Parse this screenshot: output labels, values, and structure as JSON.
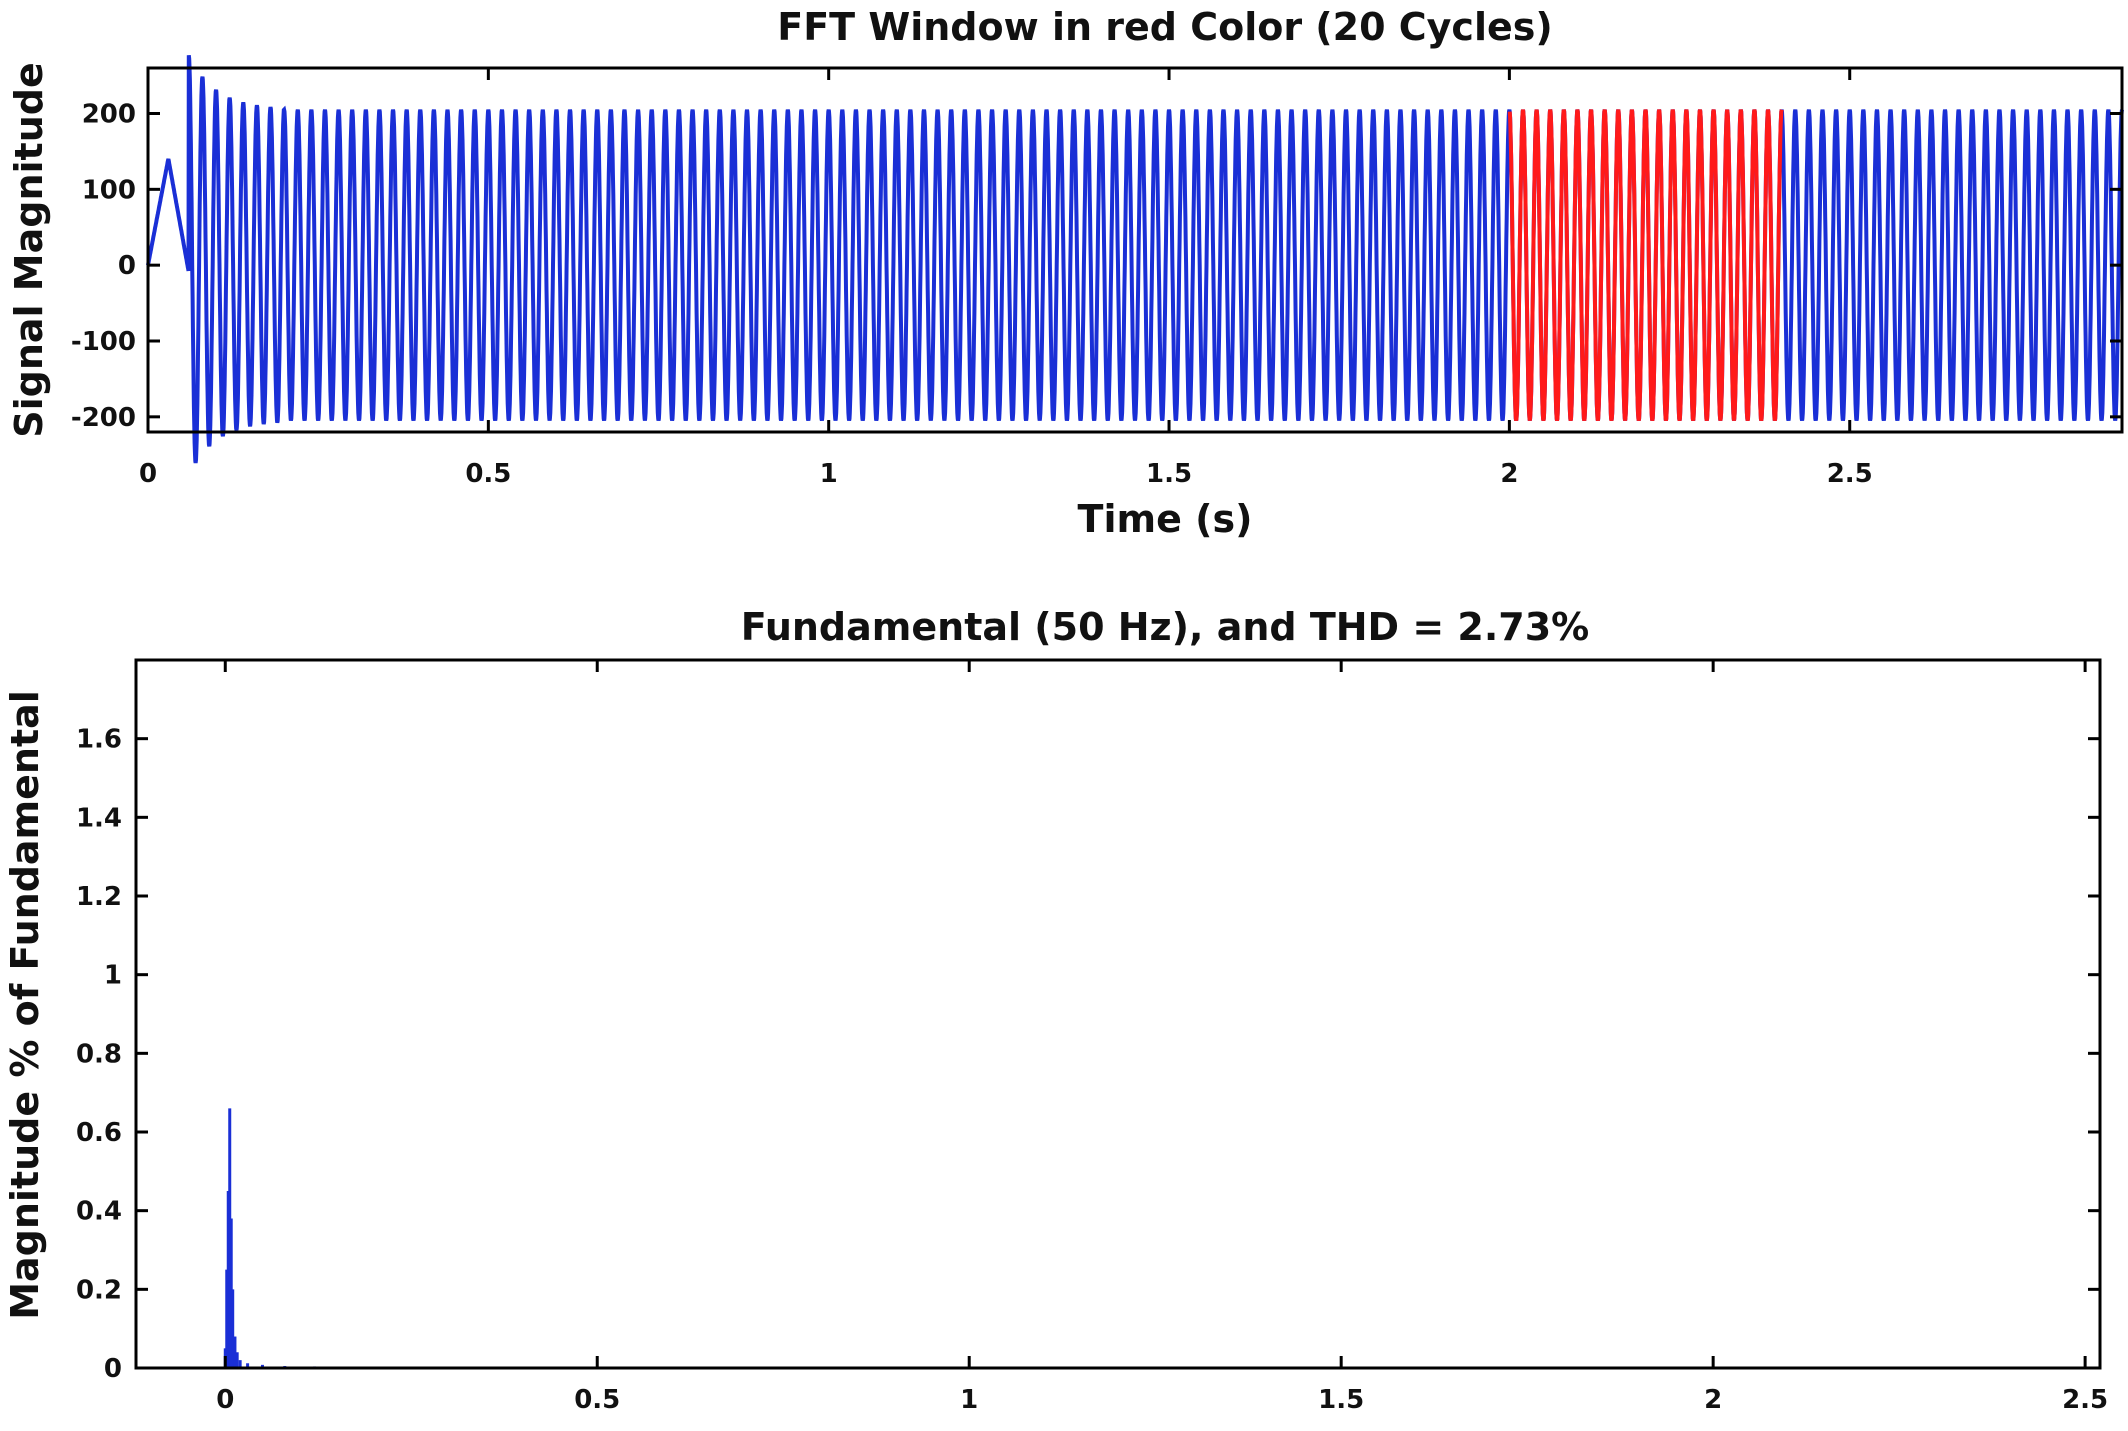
{
  "chart_data": [
    {
      "type": "line",
      "title": "FFT Window  in red Color (20 Cycles)",
      "xlabel": "Time  (s)",
      "ylabel": "Signal Magnitude",
      "xlim": [
        0,
        2.9
      ],
      "ylim": [
        -220,
        260
      ],
      "x_ticks": [
        0,
        0.5,
        1,
        1.5,
        2,
        2.5
      ],
      "x_tick_labels": [
        "0",
        "0.5",
        "1",
        "1.5",
        "2",
        "2.5"
      ],
      "y_ticks": [
        200,
        100,
        0,
        -100,
        -200
      ],
      "y_tick_labels": [
        "200",
        "100",
        "0",
        "-100",
        "-200"
      ],
      "signal": {
        "frequency_hz": 50,
        "amplitude": 205,
        "duration_s": 2.9
      },
      "series": [
        {
          "role": "full signal",
          "color": "#1a2fd6",
          "x_range": [
            0,
            2.9
          ]
        },
        {
          "role": "fft window",
          "color": "#ff1a1a",
          "x_range": [
            2.0,
            2.4
          ]
        }
      ],
      "grid": false
    },
    {
      "type": "bar",
      "title": "Fundamental  (50 Hz), and THD = 2.73%",
      "xlabel": "",
      "ylabel": "Magnitude % of Fundamental",
      "xlim": [
        -0.12,
        2.52
      ],
      "ylim": [
        0,
        1.8
      ],
      "x_ticks": [
        0,
        0.5,
        1,
        1.5,
        2,
        2.5
      ],
      "x_tick_labels": [
        "0",
        "0.5",
        "1",
        "1.5",
        "2",
        "2.5"
      ],
      "y_ticks": [
        0,
        0.2,
        0.4,
        0.6,
        0.8,
        1,
        1.2,
        1.4,
        1.6
      ],
      "y_tick_labels": [
        "0",
        "0.2",
        "0.4",
        "0.6",
        "0.8",
        "1",
        "1.2",
        "1.4",
        "1.6"
      ],
      "x": [
        0.0,
        0.002,
        0.004,
        0.006,
        0.008,
        0.01,
        0.013,
        0.016,
        0.02,
        0.03,
        0.05,
        0.08,
        0.12,
        0.2,
        0.3
      ],
      "values": [
        0.05,
        0.25,
        0.45,
        0.66,
        0.38,
        0.2,
        0.08,
        0.04,
        0.02,
        0.012,
        0.008,
        0.005,
        0.004,
        0.002,
        0.001
      ],
      "color": "#1a2fd6",
      "grid": false
    }
  ]
}
